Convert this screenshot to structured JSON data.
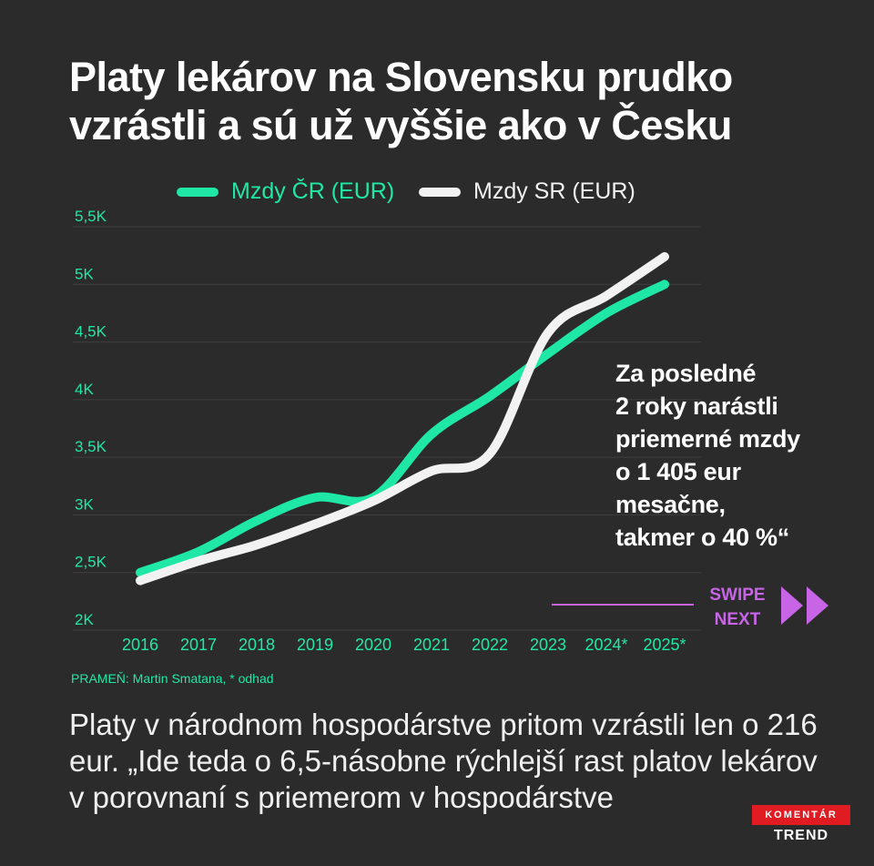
{
  "title_lines": [
    "Platy lekárov na Slovensku prudko",
    "vzrástli a sú už vyššie ako v Česku"
  ],
  "colors": {
    "background": "#2b2b2b",
    "series_cr": "#1fe8a6",
    "series_sr": "#f2f2f2",
    "grid": "#3f3f3f",
    "accent_purple": "#c864e6",
    "brand_red": "#e01b22"
  },
  "chart_data": {
    "type": "line",
    "categories": [
      "2016",
      "2017",
      "2018",
      "2019",
      "2020",
      "2021",
      "2022",
      "2023",
      "2024*",
      "2025*"
    ],
    "y_ticks": [
      "2K",
      "2,5K",
      "3K",
      "3,5K",
      "4K",
      "4,5K",
      "5K",
      "5,5K"
    ],
    "ylim": [
      2000,
      5500
    ],
    "grid": true,
    "legend_position": "top",
    "series": [
      {
        "name": "Mzdy ČR (EUR)",
        "color": "#1fe8a6",
        "values": [
          2500,
          2680,
          2950,
          3150,
          3150,
          3700,
          4030,
          4400,
          4750,
          5000
        ]
      },
      {
        "name": "Mzdy SR (EUR)",
        "color": "#f2f2f2",
        "values": [
          2430,
          2600,
          2740,
          2920,
          3120,
          3380,
          3530,
          4580,
          4900,
          5240
        ]
      }
    ]
  },
  "callout_lines": [
    "Za posledné",
    "2 roky narástli",
    "priemerné mzdy",
    "o 1 405 eur",
    "mesačne,",
    "takmer o 40 %“"
  ],
  "swipe": {
    "line1": "SWIPE",
    "line2": "NEXT",
    "icon": "double-chevron-right-icon"
  },
  "source": "PRAMEŇ: Martin Smatana, * odhad",
  "body_lines": [
    "Platy v národnom hospodárstve pritom vzrástli len o 216",
    "eur. „Ide teda o 6,5-násobne rýchlejší rast platov lekárov",
    "v porovnaní s priemerom v hospodárstve"
  ],
  "logo": {
    "top": "KOMENTÁR",
    "bottom": "TREND"
  }
}
